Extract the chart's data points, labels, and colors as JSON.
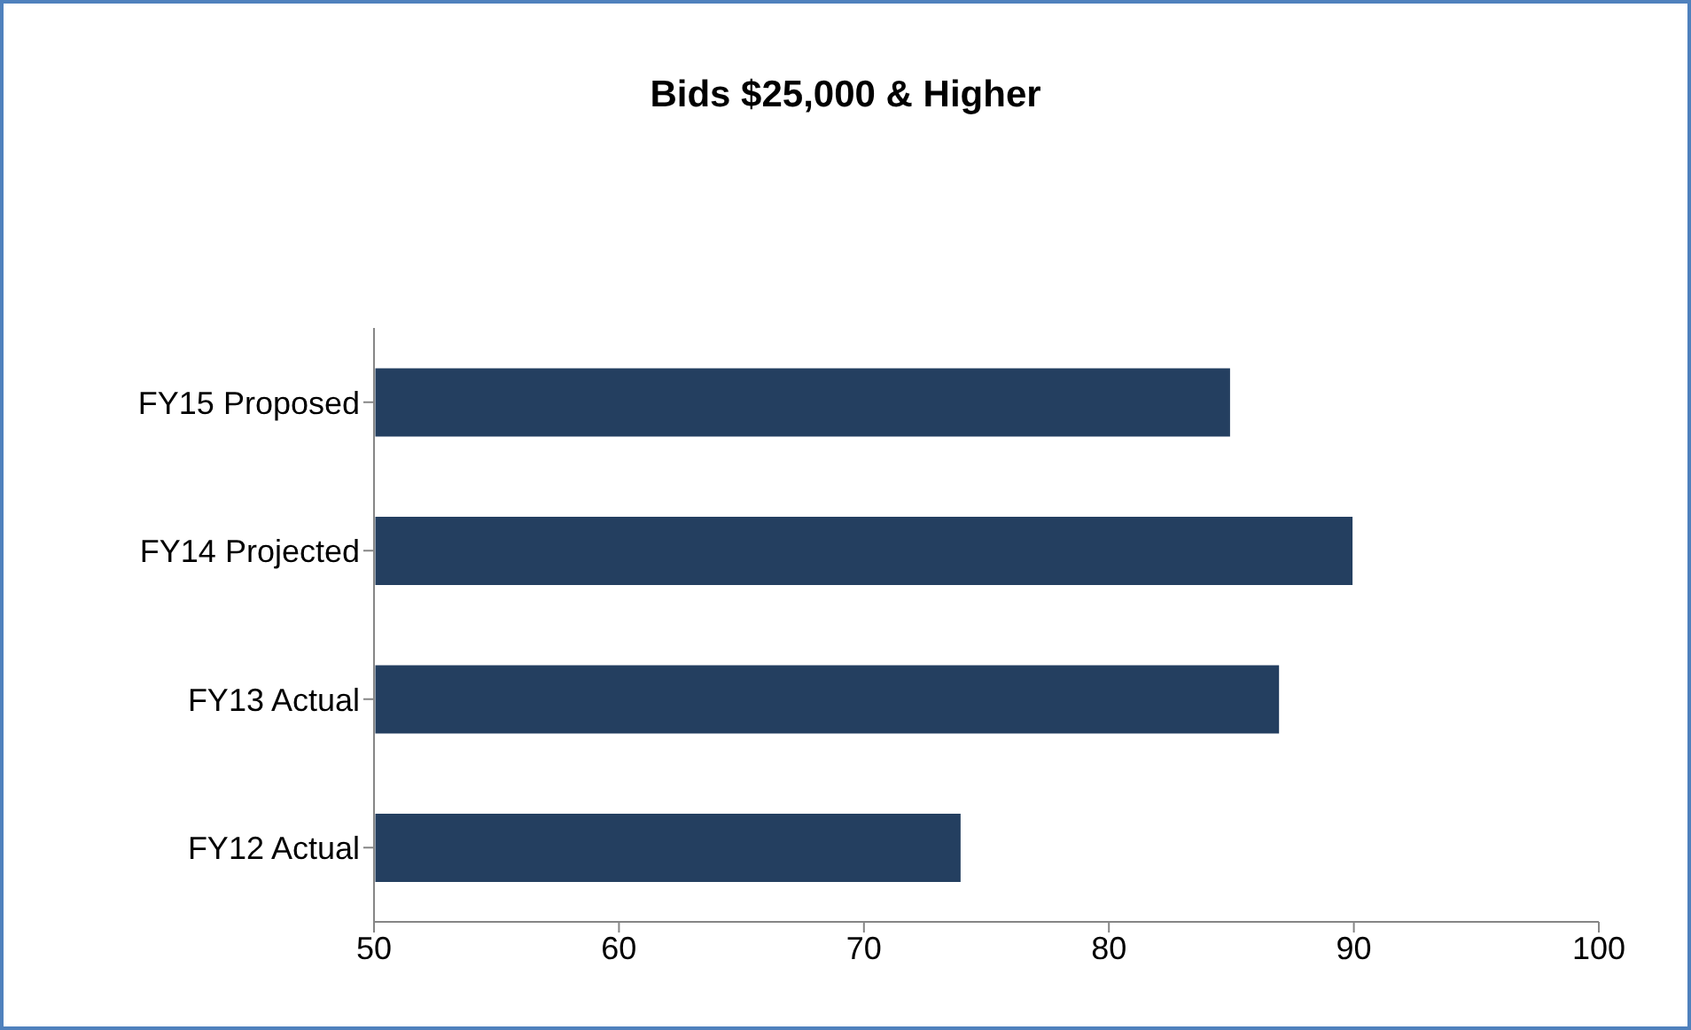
{
  "chart_data": {
    "type": "bar",
    "title": "Bids $25,000 & Higher",
    "orientation": "horizontal",
    "categories": [
      "FY15 Proposed",
      "FY14 Projected",
      "FY13 Actual",
      "FY12 Actual"
    ],
    "values": [
      85,
      90,
      87,
      74
    ],
    "color": "#243f60",
    "xlim": [
      50,
      100
    ],
    "xticks": [
      50,
      60,
      70,
      80,
      90,
      100
    ]
  }
}
